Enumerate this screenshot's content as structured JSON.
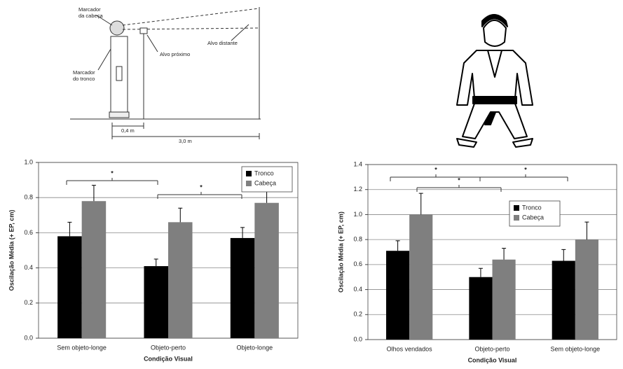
{
  "diagram": {
    "labels": [
      "Marcador",
      "da cabeça",
      "Alvo próximo",
      "Alvo distante",
      "Marcador",
      "do tronco",
      "0,4 m",
      "3,0 m"
    ]
  },
  "chart_data": [
    {
      "type": "bar",
      "y_label": "Oscilação Média (+ EP, cm)",
      "x_label": "Condição Visual",
      "categories": [
        "Sem objeto-longe",
        "Objeto-perto",
        "Objeto-longe"
      ],
      "series": [
        {
          "name": "Tronco",
          "color": "#000000",
          "values": [
            0.58,
            0.41,
            0.57
          ],
          "errors": [
            0.08,
            0.04,
            0.06
          ]
        },
        {
          "name": "Cabeça",
          "color": "#7f7f7f",
          "values": [
            0.78,
            0.66,
            0.77
          ],
          "errors": [
            0.09,
            0.08,
            0.07
          ]
        }
      ],
      "ylim": [
        0,
        1
      ],
      "yticks": [
        {
          "value": 0,
          "label": "0.0"
        },
        0.2,
        0.4,
        0.6,
        0.8,
        {
          "value": 1,
          "label": "1.0"
        }
      ],
      "grid": true,
      "legend": "upper right",
      "annotations": [
        {
          "text": "*"
        },
        {
          "text": "*"
        }
      ]
    },
    {
      "type": "bar",
      "y_label": "Oscilação Média (+ EP, cm)",
      "x_label": "Condição Visual",
      "categories": [
        "Olhos vendados",
        "Objeto-perto",
        "Sem objeto-longe"
      ],
      "series": [
        {
          "name": "Tronco",
          "color": "#000000",
          "values": [
            0.71,
            0.5,
            0.63
          ],
          "errors": [
            0.08,
            0.07,
            0.09
          ]
        },
        {
          "name": "Cabeça",
          "color": "#7f7f7f",
          "values": [
            1,
            0.64,
            0.8
          ],
          "errors": [
            0.17,
            0.09,
            0.14
          ]
        }
      ],
      "ylim": [
        0,
        1.4
      ],
      "yticks": [
        {
          "value": 0,
          "label": "0.0"
        },
        0.2,
        0.4,
        0.6,
        0.8,
        {
          "value": 1,
          "label": "1.0"
        },
        1.2,
        1.4
      ],
      "grid": true,
      "legend": "center right",
      "annotations": [
        {
          "text": "*"
        },
        {
          "text": "*"
        },
        {
          "text": "*"
        }
      ]
    }
  ]
}
